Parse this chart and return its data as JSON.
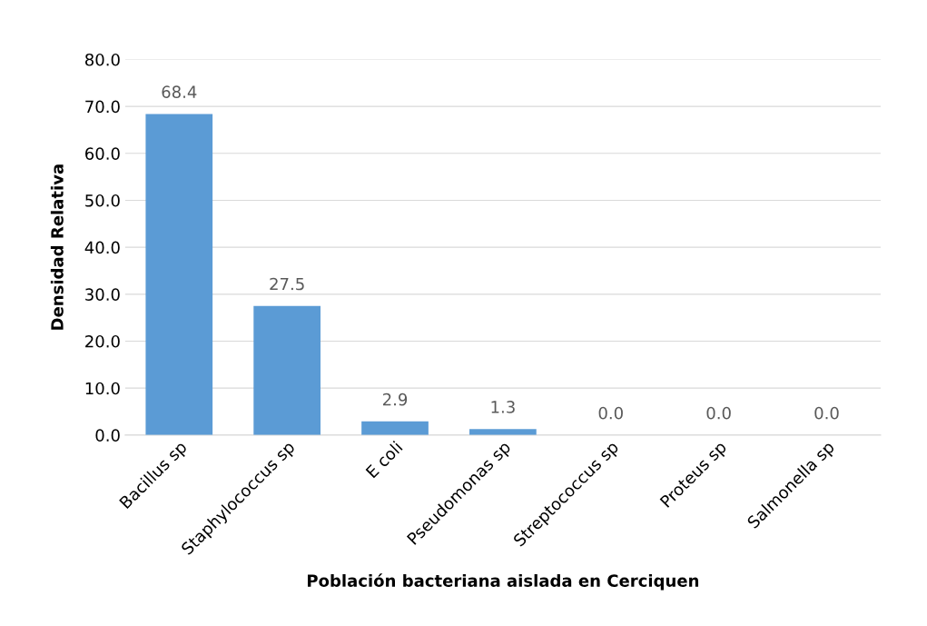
{
  "chart_data": {
    "type": "bar",
    "xlabel": "Población bacteriana aislada en Cerciquen",
    "ylabel": "Densidad Relativa",
    "categories": [
      "Bacillus sp",
      "Staphylococcus sp",
      "E coli",
      "Pseudomonas sp",
      "Streptococcus sp",
      "Proteus sp",
      "Salmonella sp"
    ],
    "values": [
      68.4,
      27.5,
      2.9,
      1.3,
      0.0,
      0.0,
      0.0
    ],
    "value_labels": [
      "68.4",
      "27.5",
      "2.9",
      "1.3",
      "0.0",
      "0.0",
      "0.0"
    ],
    "color": "#5b9bd5",
    "ylim": [
      0,
      80
    ],
    "yticks": [
      {
        "value": 0,
        "label": "0.0"
      },
      {
        "value": 10,
        "label": "10.0"
      },
      {
        "value": 20,
        "label": "20.0"
      },
      {
        "value": 30,
        "label": "30.0"
      },
      {
        "value": 40,
        "label": "40.0"
      },
      {
        "value": 50,
        "label": "50.0"
      },
      {
        "value": 60,
        "label": "60.0"
      },
      {
        "value": 70,
        "label": "70.0"
      },
      {
        "value": 80,
        "label": "80.0"
      }
    ],
    "grid": "y",
    "legend": false
  }
}
